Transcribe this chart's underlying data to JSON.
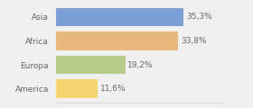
{
  "categories": [
    "America",
    "Europa",
    "Africa",
    "Asia"
  ],
  "values": [
    11.6,
    19.2,
    33.8,
    35.3
  ],
  "labels": [
    "11,6%",
    "19,2%",
    "33,8%",
    "35,3%"
  ],
  "bar_colors": [
    "#f5d570",
    "#b8cc8a",
    "#e8b87a",
    "#7b9fd4"
  ],
  "background_color": "#f0f0f0",
  "xlim": [
    0,
    46
  ],
  "label_fontsize": 6.5,
  "tick_fontsize": 6.5,
  "bar_height": 0.78
}
